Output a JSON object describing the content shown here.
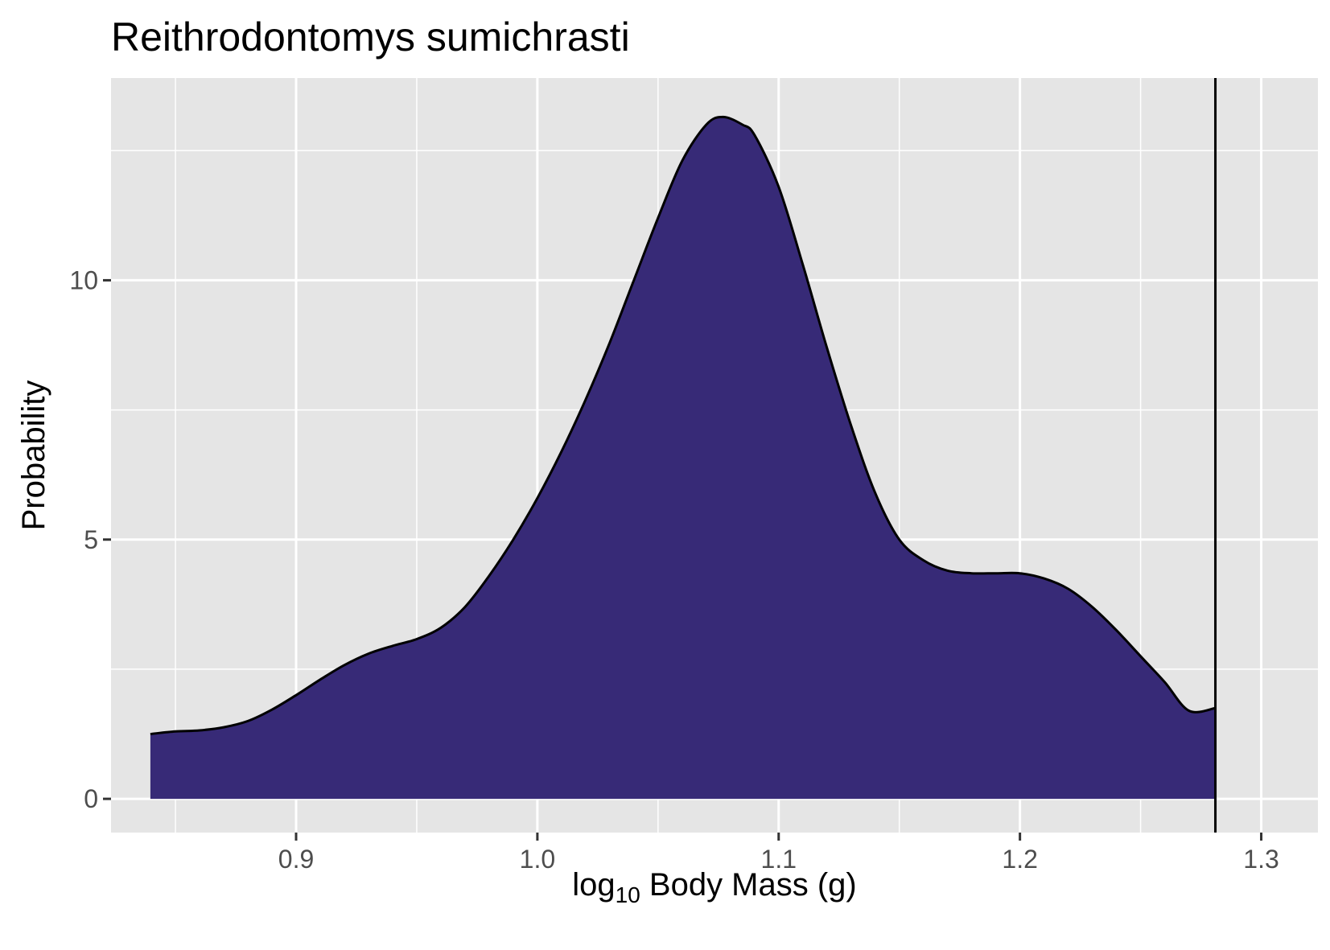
{
  "chart_data": {
    "type": "area",
    "title": "Reithrodontomys sumichrasti",
    "xlabel": {
      "prefix": "log",
      "subscript": "10",
      "suffix": " Body Mass (g)"
    },
    "ylabel": "Probability",
    "xlim": [
      0.8233,
      1.3235
    ],
    "ylim": [
      -0.65,
      13.9
    ],
    "x_ticks": [
      0.9,
      1.0,
      1.1,
      1.2,
      1.3
    ],
    "x_tick_labels": [
      "0.9",
      "1.0",
      "1.1",
      "1.2",
      "1.3"
    ],
    "y_ticks": [
      0,
      5,
      10
    ],
    "y_tick_labels": [
      "0",
      "5",
      "10"
    ],
    "x_minor_ticks": [
      0.85,
      0.95,
      1.05,
      1.15,
      1.25
    ],
    "y_minor_ticks": [
      2.5,
      7.5,
      12.5
    ],
    "grid": true,
    "fill_color": "#372a77",
    "line_color": "#000000",
    "panel_color": "#e5e5e5",
    "vline_x": 1.281,
    "series": [
      {
        "x": [
          0.8396,
          0.85,
          0.86,
          0.87,
          0.88,
          0.89,
          0.9,
          0.91,
          0.92,
          0.93,
          0.94,
          0.95,
          0.96,
          0.97,
          0.98,
          0.99,
          1.0,
          1.01,
          1.02,
          1.03,
          1.04,
          1.05,
          1.06,
          1.07,
          1.077,
          1.085,
          1.09,
          1.1,
          1.11,
          1.12,
          1.13,
          1.14,
          1.15,
          1.16,
          1.17,
          1.18,
          1.19,
          1.2,
          1.21,
          1.22,
          1.23,
          1.24,
          1.25,
          1.26,
          1.27,
          1.281
        ],
        "y": [
          1.25,
          1.3,
          1.32,
          1.38,
          1.5,
          1.72,
          2.0,
          2.3,
          2.58,
          2.8,
          2.95,
          3.08,
          3.3,
          3.7,
          4.3,
          5.0,
          5.8,
          6.7,
          7.7,
          8.8,
          10.0,
          11.2,
          12.3,
          13.0,
          13.15,
          13.0,
          12.8,
          11.8,
          10.3,
          8.7,
          7.2,
          5.9,
          5.0,
          4.6,
          4.4,
          4.35,
          4.35,
          4.35,
          4.25,
          4.05,
          3.7,
          3.25,
          2.75,
          2.25,
          1.7,
          1.75
        ]
      }
    ]
  }
}
